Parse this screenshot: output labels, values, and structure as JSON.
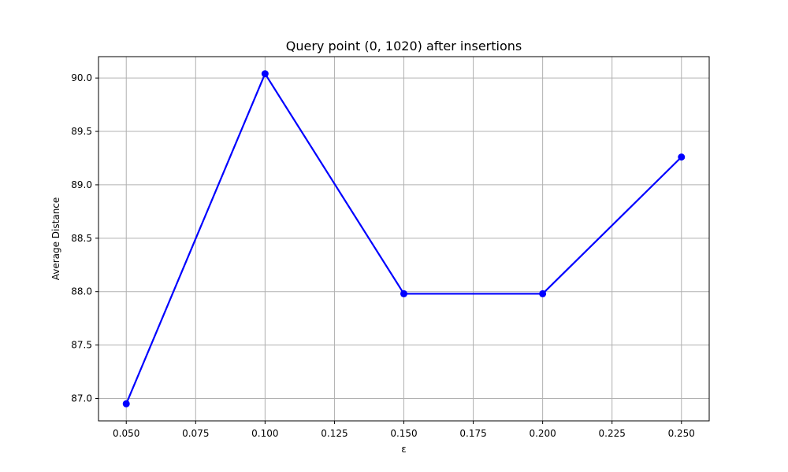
{
  "chart_data": {
    "type": "line",
    "title": "Query point (0, 1020) after insertions",
    "xlabel": "ε",
    "ylabel": "Average Distance",
    "xlim": [
      0.04,
      0.26
    ],
    "ylim": [
      86.79,
      90.2
    ],
    "grid": true,
    "xticks": [
      "0.050",
      "0.075",
      "0.100",
      "0.125",
      "0.150",
      "0.175",
      "0.200",
      "0.225",
      "0.250"
    ],
    "yticks": [
      "87.0",
      "87.5",
      "88.0",
      "88.5",
      "89.0",
      "89.5",
      "90.0"
    ],
    "series": [
      {
        "color": "#0000ff",
        "marker": "circle",
        "x": [
          0.05,
          0.1,
          0.15,
          0.2,
          0.25
        ],
        "y": [
          86.95,
          90.04,
          87.98,
          87.98,
          89.26
        ]
      }
    ]
  }
}
